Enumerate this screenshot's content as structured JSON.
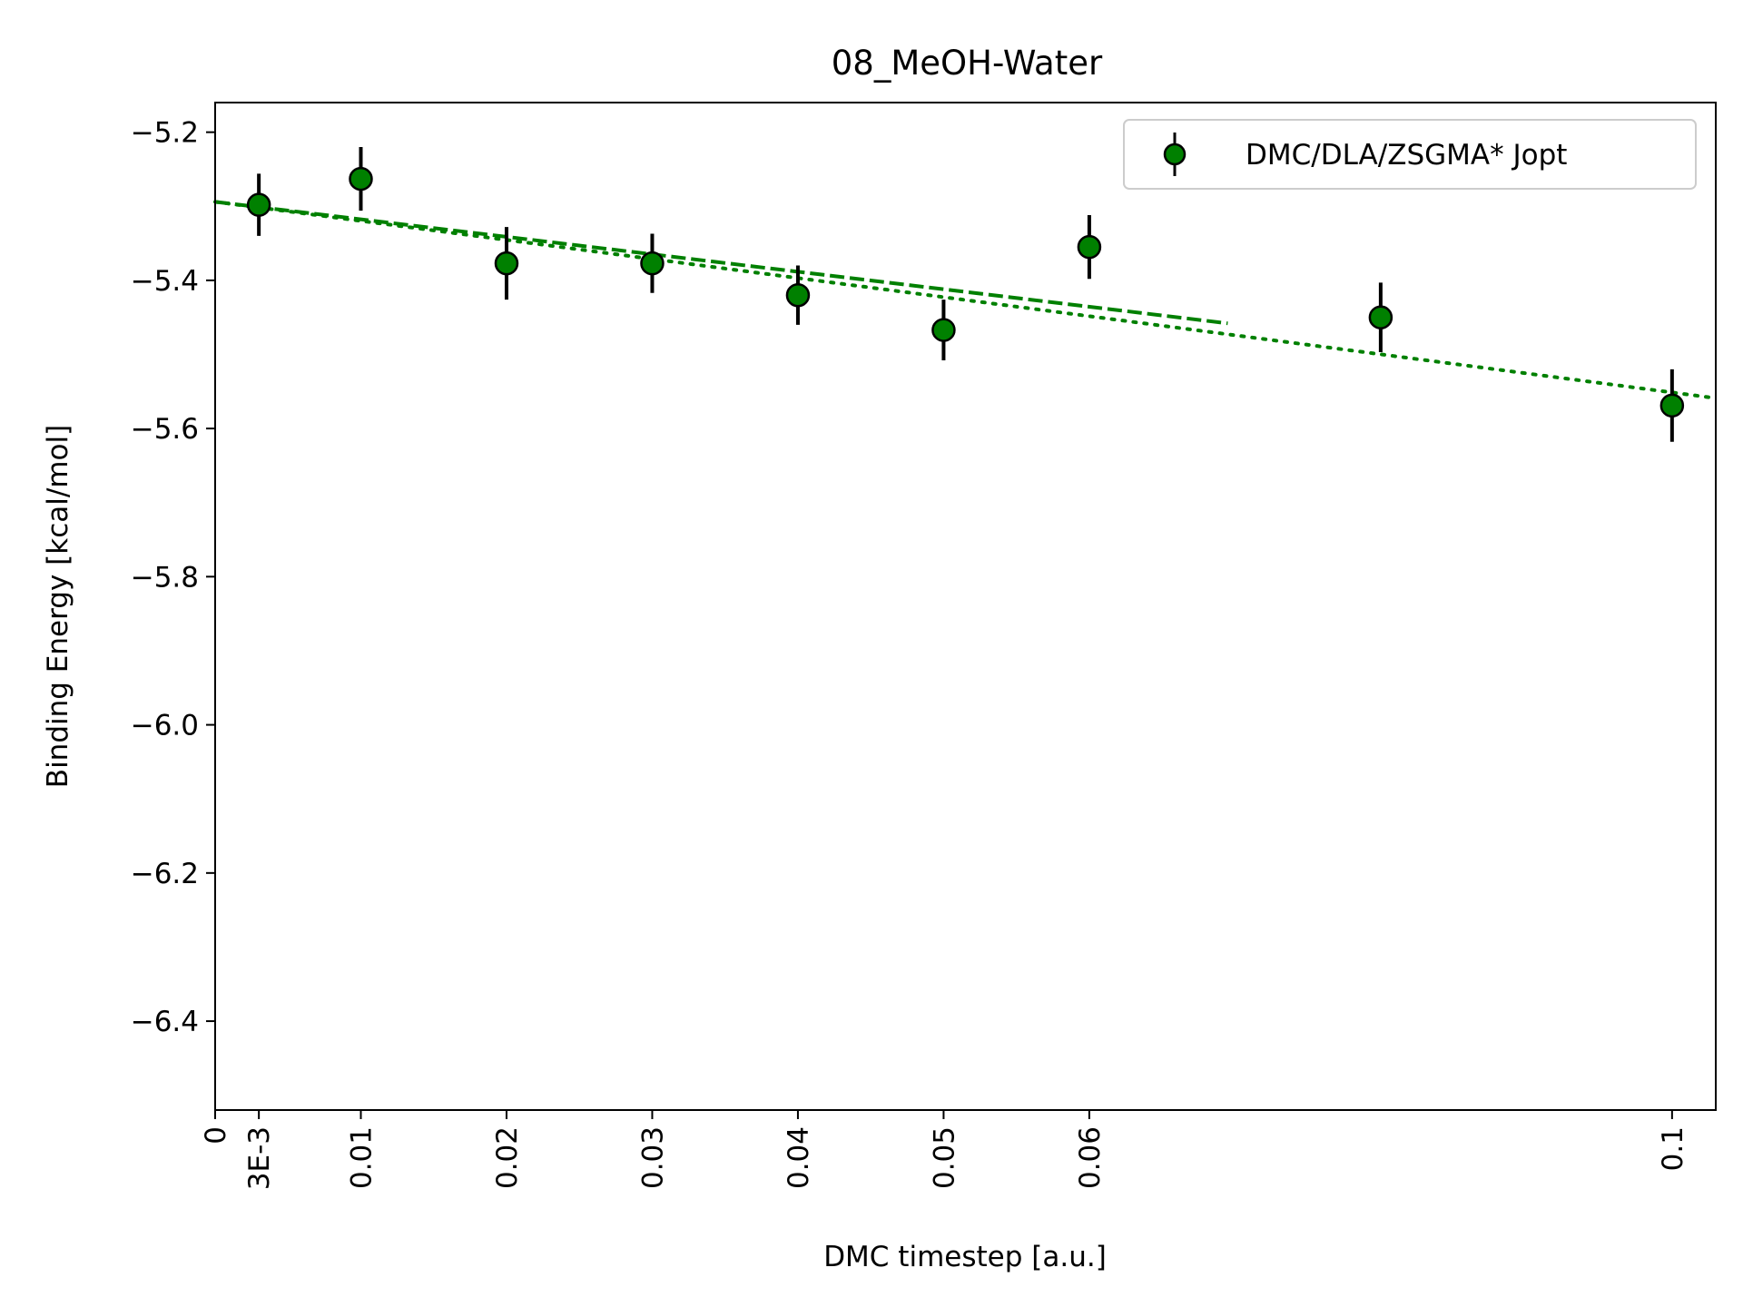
{
  "chart_data": {
    "type": "scatter",
    "title": "08_MeOH-Water",
    "xlabel": "DMC timestep [a.u.]",
    "ylabel": "Binding Energy [kcal/mol]",
    "xlim": [
      0,
      0.103
    ],
    "ylim": [
      -6.52,
      -5.16
    ],
    "x_ticks": [
      {
        "value": 0,
        "label": "0"
      },
      {
        "value": 0.003,
        "label": "3E-3"
      },
      {
        "value": 0.01,
        "label": "0.01"
      },
      {
        "value": 0.02,
        "label": "0.02"
      },
      {
        "value": 0.03,
        "label": "0.03"
      },
      {
        "value": 0.04,
        "label": "0.04"
      },
      {
        "value": 0.05,
        "label": "0.05"
      },
      {
        "value": 0.06,
        "label": "0.06"
      },
      {
        "value": 0.1,
        "label": "0.1"
      }
    ],
    "y_ticks": [
      {
        "value": -5.2,
        "label": "−5.2"
      },
      {
        "value": -5.4,
        "label": "−5.4"
      },
      {
        "value": -5.6,
        "label": "−5.6"
      },
      {
        "value": -5.8,
        "label": "−5.8"
      },
      {
        "value": -6.0,
        "label": "−6.0"
      },
      {
        "value": -6.2,
        "label": "−6.2"
      },
      {
        "value": -6.4,
        "label": "−6.4"
      }
    ],
    "grid": false,
    "legend_position": "top-right",
    "series": [
      {
        "name": "DMC/DLA/ZSGMA* Jopt",
        "color": "#008000",
        "marker_edge_color": "#000000",
        "errorbar_color": "#000000",
        "points": [
          {
            "x": 0.003,
            "y": -5.298,
            "err": 0.042
          },
          {
            "x": 0.01,
            "y": -5.263,
            "err": 0.043
          },
          {
            "x": 0.02,
            "y": -5.377,
            "err": 0.049
          },
          {
            "x": 0.03,
            "y": -5.377,
            "err": 0.04
          },
          {
            "x": 0.04,
            "y": -5.42,
            "err": 0.04
          },
          {
            "x": 0.05,
            "y": -5.467,
            "err": 0.041
          },
          {
            "x": 0.06,
            "y": -5.355,
            "err": 0.043
          },
          {
            "x": 0.08,
            "y": -5.45,
            "err": 0.047
          },
          {
            "x": 0.1,
            "y": -5.569,
            "err": 0.049
          }
        ]
      }
    ],
    "fit_lines": [
      {
        "style": "dashed",
        "color": "#008000",
        "x": [
          0,
          0.0695
        ],
        "y": [
          -5.294,
          -5.458
        ]
      },
      {
        "style": "dotted",
        "color": "#008000",
        "x": [
          0,
          0.103
        ],
        "y": [
          -5.294,
          -5.559
        ]
      }
    ]
  }
}
